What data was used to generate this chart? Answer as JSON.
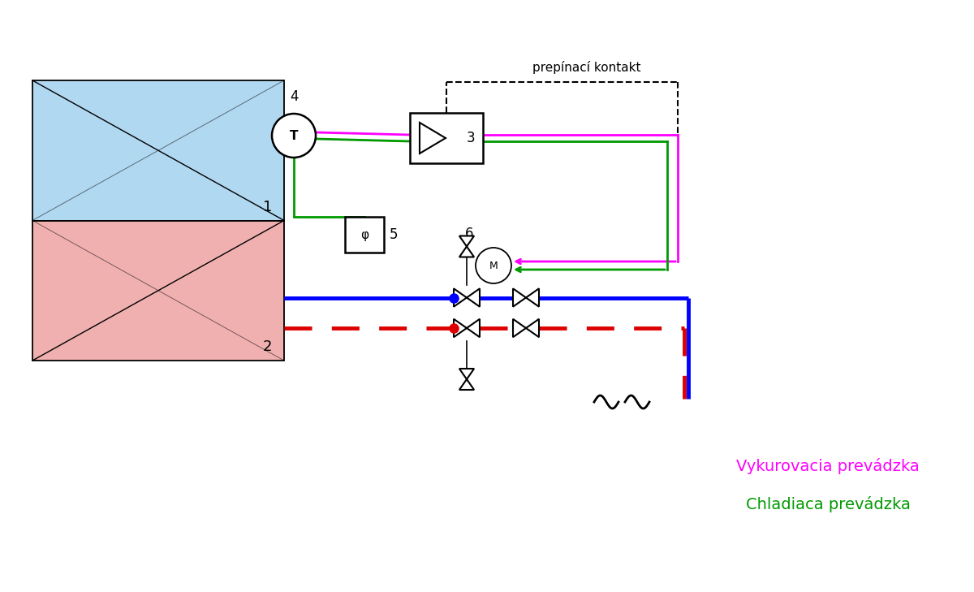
{
  "bg": "#ffffff",
  "blue": "#0000ff",
  "red": "#dd0000",
  "green": "#009900",
  "magenta": "#ff00ff",
  "black": "#000000",
  "panel_top_color": "#b0d8f0",
  "panel_bot_color": "#f0b0b0",
  "lw_pipe": 3.5,
  "lw_ctrl": 2.0,
  "text_prepinaci": "prepínací kontakt",
  "text_heating": "Vykurovacia prevádzka",
  "text_cooling": "Chladiaca prevádzka",
  "label_4": "4",
  "label_1": "1",
  "label_2": "2",
  "label_3": "3",
  "label_5": "5",
  "label_6": "6"
}
